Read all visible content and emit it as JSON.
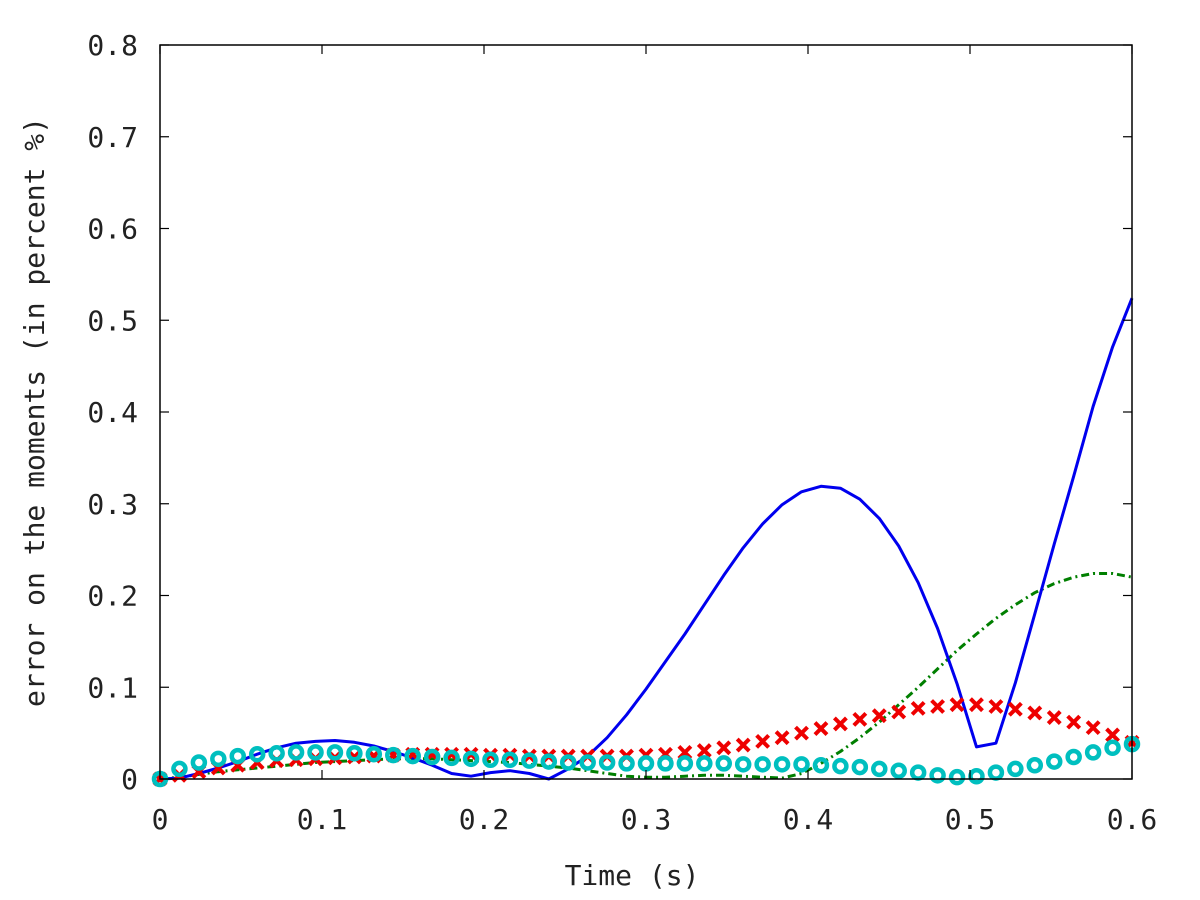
{
  "chart_data": {
    "type": "line",
    "title": "",
    "xlabel": "Time (s)",
    "ylabel": "error on the moments (in percent %)",
    "xlim": [
      0,
      0.6
    ],
    "ylim": [
      0,
      0.8
    ],
    "x_ticks": [
      "0",
      "0.1",
      "0.2",
      "0.3",
      "0.4",
      "0.5",
      "0.6"
    ],
    "y_ticks": [
      "0",
      "0.1",
      "0.2",
      "0.3",
      "0.4",
      "0.5",
      "0.6",
      "0.7",
      "0.8"
    ],
    "x_tick_values": [
      0,
      0.1,
      0.2,
      0.3,
      0.4,
      0.5,
      0.6
    ],
    "y_tick_values": [
      0,
      0.1,
      0.2,
      0.3,
      0.4,
      0.5,
      0.6,
      0.7,
      0.8
    ],
    "grid": false,
    "legend": "none",
    "series": [
      {
        "style": "solid-line",
        "color": "#0000ee",
        "x": [
          0,
          0.012,
          0.024,
          0.036,
          0.048,
          0.06,
          0.072,
          0.084,
          0.096,
          0.108,
          0.12,
          0.132,
          0.144,
          0.156,
          0.168,
          0.18,
          0.192,
          0.204,
          0.216,
          0.228,
          0.24,
          0.252,
          0.264,
          0.276,
          0.288,
          0.3,
          0.312,
          0.324,
          0.336,
          0.348,
          0.36,
          0.372,
          0.384,
          0.396,
          0.408,
          0.42,
          0.432,
          0.444,
          0.456,
          0.468,
          0.48,
          0.492,
          0.504,
          0.516,
          0.528,
          0.54,
          0.552,
          0.564,
          0.576,
          0.588,
          0.6
        ],
        "y": [
          0,
          0.001,
          0.006,
          0.012,
          0.019,
          0.027,
          0.034,
          0.039,
          0.041,
          0.042,
          0.04,
          0.036,
          0.03,
          0.023,
          0.015,
          0.006,
          0.003,
          0.007,
          0.009,
          0.006,
          0.0,
          0.011,
          0.025,
          0.045,
          0.07,
          0.098,
          0.128,
          0.158,
          0.19,
          0.222,
          0.252,
          0.278,
          0.299,
          0.313,
          0.319,
          0.317,
          0.305,
          0.284,
          0.254,
          0.214,
          0.164,
          0.104,
          0.035,
          0.039,
          0.105,
          0.18,
          0.256,
          0.33,
          0.406,
          0.471,
          0.524
        ]
      },
      {
        "style": "dash-dot-line",
        "color": "#007f00",
        "x": [
          0,
          0.012,
          0.024,
          0.036,
          0.048,
          0.06,
          0.072,
          0.084,
          0.096,
          0.108,
          0.12,
          0.132,
          0.144,
          0.156,
          0.168,
          0.18,
          0.192,
          0.204,
          0.216,
          0.228,
          0.24,
          0.252,
          0.264,
          0.276,
          0.288,
          0.3,
          0.312,
          0.324,
          0.336,
          0.348,
          0.36,
          0.372,
          0.384,
          0.396,
          0.408,
          0.42,
          0.432,
          0.444,
          0.456,
          0.468,
          0.48,
          0.492,
          0.504,
          0.516,
          0.528,
          0.54,
          0.552,
          0.564,
          0.576,
          0.588,
          0.6
        ],
        "y": [
          0,
          0.002,
          0.005,
          0.008,
          0.01,
          0.012,
          0.014,
          0.016,
          0.018,
          0.019,
          0.02,
          0.021,
          0.022,
          0.022,
          0.022,
          0.021,
          0.02,
          0.019,
          0.018,
          0.016,
          0.014,
          0.012,
          0.009,
          0.006,
          0.003,
          0.002,
          0.002,
          0.003,
          0.004,
          0.004,
          0.003,
          0.002,
          0.001,
          0.006,
          0.017,
          0.03,
          0.045,
          0.062,
          0.081,
          0.1,
          0.12,
          0.14,
          0.158,
          0.175,
          0.19,
          0.203,
          0.213,
          0.22,
          0.224,
          0.224,
          0.22
        ]
      },
      {
        "style": "x-markers",
        "color": "#ee0000",
        "x": [
          0,
          0.012,
          0.024,
          0.036,
          0.048,
          0.06,
          0.072,
          0.084,
          0.096,
          0.108,
          0.12,
          0.132,
          0.144,
          0.156,
          0.168,
          0.18,
          0.192,
          0.204,
          0.216,
          0.228,
          0.24,
          0.252,
          0.264,
          0.276,
          0.288,
          0.3,
          0.312,
          0.324,
          0.336,
          0.348,
          0.36,
          0.372,
          0.384,
          0.396,
          0.408,
          0.42,
          0.432,
          0.444,
          0.456,
          0.468,
          0.48,
          0.492,
          0.504,
          0.516,
          0.528,
          0.54,
          0.552,
          0.564,
          0.576,
          0.588,
          0.6
        ],
        "y": [
          0,
          0.004,
          0.008,
          0.012,
          0.015,
          0.018,
          0.02,
          0.021,
          0.022,
          0.023,
          0.024,
          0.025,
          0.026,
          0.027,
          0.027,
          0.027,
          0.027,
          0.026,
          0.026,
          0.025,
          0.025,
          0.025,
          0.025,
          0.025,
          0.025,
          0.026,
          0.027,
          0.029,
          0.031,
          0.034,
          0.037,
          0.041,
          0.045,
          0.05,
          0.055,
          0.06,
          0.065,
          0.069,
          0.073,
          0.077,
          0.079,
          0.081,
          0.081,
          0.079,
          0.076,
          0.072,
          0.067,
          0.062,
          0.056,
          0.048,
          0.04
        ]
      },
      {
        "style": "circle-markers",
        "color": "#00bfbf",
        "x": [
          0,
          0.012,
          0.024,
          0.036,
          0.048,
          0.06,
          0.072,
          0.084,
          0.096,
          0.108,
          0.12,
          0.132,
          0.144,
          0.156,
          0.168,
          0.18,
          0.192,
          0.204,
          0.216,
          0.228,
          0.24,
          0.252,
          0.264,
          0.276,
          0.288,
          0.3,
          0.312,
          0.324,
          0.336,
          0.348,
          0.36,
          0.372,
          0.384,
          0.396,
          0.408,
          0.42,
          0.432,
          0.444,
          0.456,
          0.468,
          0.48,
          0.492,
          0.504,
          0.516,
          0.528,
          0.54,
          0.552,
          0.564,
          0.576,
          0.588,
          0.6
        ],
        "y": [
          0,
          0.011,
          0.018,
          0.022,
          0.025,
          0.027,
          0.028,
          0.029,
          0.029,
          0.029,
          0.028,
          0.027,
          0.026,
          0.025,
          0.024,
          0.023,
          0.022,
          0.021,
          0.021,
          0.02,
          0.019,
          0.018,
          0.018,
          0.018,
          0.017,
          0.017,
          0.017,
          0.017,
          0.017,
          0.017,
          0.016,
          0.016,
          0.016,
          0.016,
          0.015,
          0.014,
          0.013,
          0.011,
          0.009,
          0.007,
          0.004,
          0.002,
          0.003,
          0.007,
          0.011,
          0.015,
          0.019,
          0.024,
          0.029,
          0.034,
          0.038
        ]
      }
    ]
  }
}
